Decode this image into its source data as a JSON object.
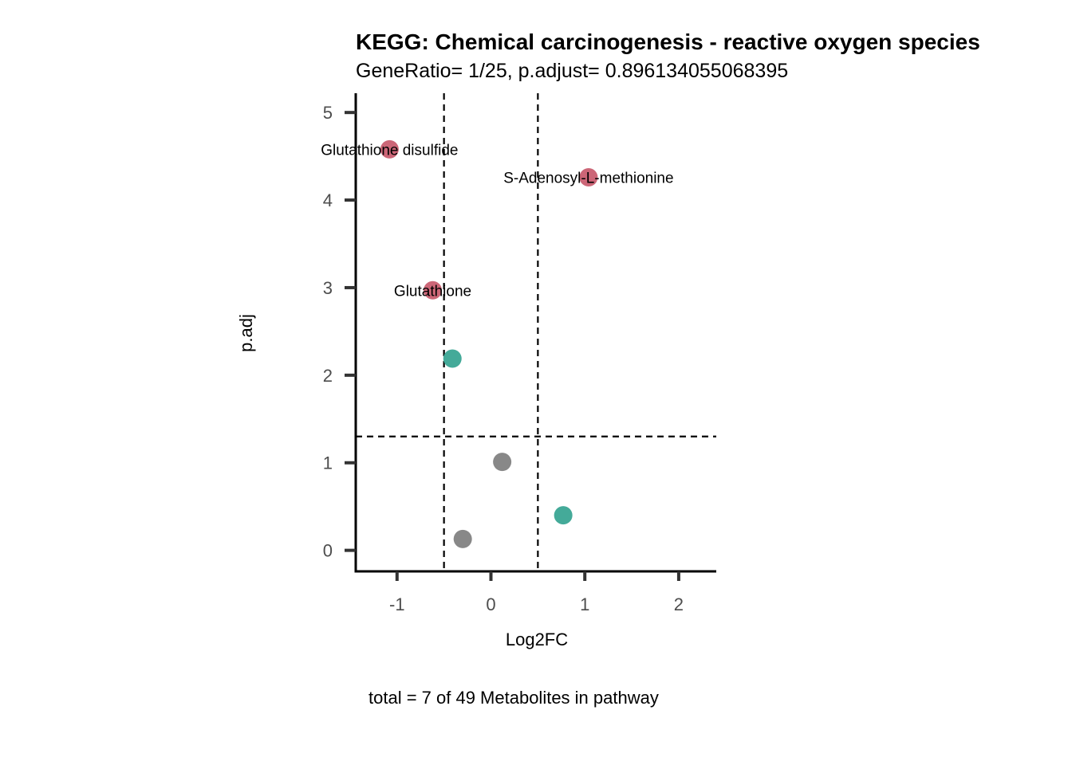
{
  "chart_data": {
    "type": "scatter",
    "title": "KEGG: Chemical carcinogenesis - reactive oxygen species",
    "subtitle": "GeneRatio= 1/25, p.adjust= 0.896134055068395",
    "caption": "total = 7 of 49 Metabolites in pathway",
    "xlabel": "Log2FC",
    "ylabel": "p.adj",
    "xlim": [
      -1.44,
      2.4
    ],
    "ylim": [
      -0.24,
      5.22
    ],
    "xticks": [
      -1,
      0,
      1,
      2
    ],
    "yticks": [
      0,
      1,
      2,
      3,
      4,
      5
    ],
    "grid": false,
    "legend": "none",
    "reference_lines": {
      "vertical": [
        -0.5,
        0.5
      ],
      "horizontal": [
        1.3
      ]
    },
    "colors": {
      "significant": "#CC6677",
      "fc_only": "#44AA99",
      "ns": "#888888"
    },
    "points": [
      {
        "x": -1.08,
        "y": 4.58,
        "group": "significant",
        "label": "Glutathione disulfide"
      },
      {
        "x": 1.04,
        "y": 4.26,
        "group": "significant",
        "label": "S-Adenosyl-L-methionine"
      },
      {
        "x": -0.62,
        "y": 2.97,
        "group": "significant",
        "label": "Glutathione"
      },
      {
        "x": -0.41,
        "y": 2.19,
        "group": "fc_only",
        "label": ""
      },
      {
        "x": 0.12,
        "y": 1.01,
        "group": "ns",
        "label": ""
      },
      {
        "x": 0.77,
        "y": 0.4,
        "group": "fc_only",
        "label": ""
      },
      {
        "x": -0.3,
        "y": 0.13,
        "group": "ns",
        "label": ""
      }
    ]
  }
}
